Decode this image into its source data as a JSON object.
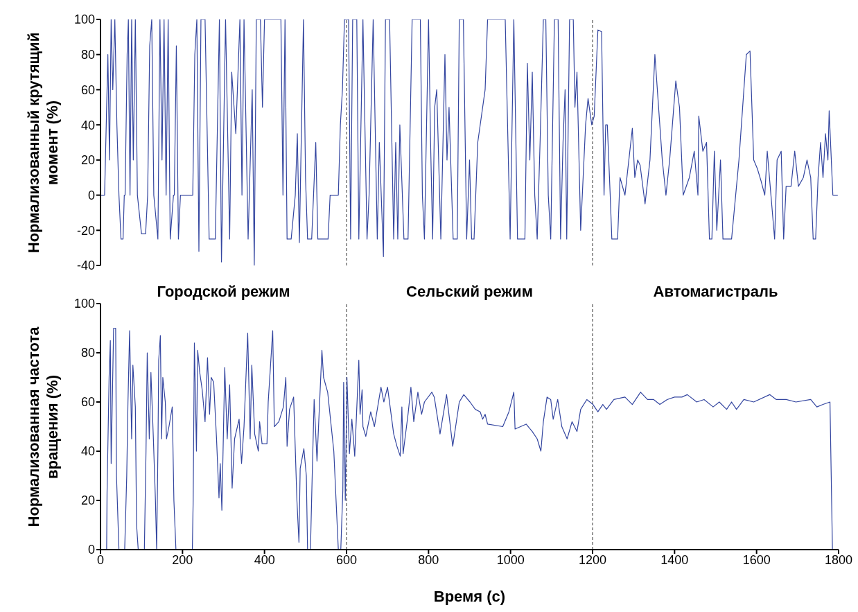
{
  "chart_data": [
    {
      "type": "line",
      "ylabel": "Нормализованный крутящий момент (%)",
      "color": "#3446a0",
      "xlim": [
        0,
        1800
      ],
      "ylim": [
        -40,
        100
      ],
      "yticks": [
        -40,
        -20,
        0,
        20,
        40,
        60,
        80,
        100
      ],
      "tick_labels": "y",
      "grid": false,
      "legend": false,
      "ref_lines": [
        {
          "axis": "x",
          "value": 600,
          "color": "#555555",
          "line_style": "dashed"
        },
        {
          "axis": "x",
          "value": 1200,
          "color": "#555555",
          "line_style": "dashed"
        }
      ],
      "x": [
        0,
        10,
        14,
        18,
        22,
        26,
        30,
        35,
        40,
        45,
        50,
        55,
        58,
        60,
        65,
        68,
        72,
        76,
        80,
        85,
        90,
        100,
        110,
        115,
        120,
        125,
        130,
        140,
        145,
        150,
        155,
        160,
        165,
        170,
        178,
        180,
        185,
        190,
        195,
        225,
        230,
        235,
        240,
        245,
        255,
        265,
        280,
        290,
        295,
        300,
        305,
        315,
        320,
        330,
        340,
        345,
        350,
        360,
        370,
        375,
        380,
        390,
        395,
        400,
        440,
        445,
        450,
        455,
        465,
        475,
        480,
        485,
        495,
        500,
        505,
        515,
        525,
        530,
        545,
        555,
        560,
        580,
        585,
        590,
        595,
        605,
        610,
        615,
        625,
        630,
        640,
        650,
        655,
        665,
        675,
        680,
        690,
        695,
        705,
        715,
        720,
        725,
        730,
        740,
        750,
        760,
        780,
        785,
        790,
        800,
        805,
        810,
        815,
        820,
        830,
        840,
        845,
        850,
        860,
        870,
        875,
        885,
        893,
        900,
        905,
        911,
        920,
        938,
        944,
        987,
        999,
        1008,
        1017,
        1035,
        1041,
        1047,
        1053,
        1059,
        1065,
        1072,
        1080,
        1086,
        1092,
        1098,
        1107,
        1116,
        1122,
        1128,
        1133,
        1137,
        1144,
        1153,
        1157,
        1162,
        1171,
        1183,
        1189,
        1198,
        1204,
        1213,
        1222,
        1228,
        1232,
        1236,
        1243,
        1247,
        1255,
        1261,
        1267,
        1279,
        1297,
        1303,
        1310,
        1316,
        1328,
        1340,
        1352,
        1358,
        1370,
        1379,
        1388,
        1403,
        1412,
        1421,
        1436,
        1448,
        1457,
        1459,
        1469,
        1478,
        1485,
        1491,
        1497,
        1503,
        1512,
        1518,
        1527,
        1539,
        1551,
        1557,
        1569,
        1575,
        1584,
        1593,
        1602,
        1611,
        1620,
        1626,
        1635,
        1644,
        1650,
        1660,
        1666,
        1672,
        1684,
        1693,
        1702,
        1714,
        1723,
        1732,
        1738,
        1744,
        1750,
        1756,
        1762,
        1768,
        1774,
        1777,
        1786,
        1798
      ],
      "values": [
        0,
        0,
        40,
        80,
        20,
        100,
        60,
        100,
        40,
        0,
        -25,
        -25,
        0,
        0,
        80,
        100,
        0,
        100,
        20,
        100,
        0,
        -22,
        -22,
        0,
        85,
        100,
        0,
        -25,
        100,
        20,
        100,
        0,
        100,
        -25,
        0,
        0,
        85,
        -25,
        0,
        0,
        80,
        100,
        -32,
        100,
        100,
        -25,
        -25,
        100,
        -38,
        30,
        100,
        -25,
        70,
        35,
        100,
        0,
        100,
        -25,
        60,
        -40,
        100,
        100,
        50,
        100,
        100,
        0,
        100,
        -25,
        -25,
        0,
        35,
        -27,
        100,
        10,
        -25,
        -25,
        30,
        -25,
        -25,
        -25,
        0,
        0,
        40,
        60,
        100,
        100,
        -25,
        100,
        100,
        -25,
        100,
        -25,
        0,
        100,
        -25,
        30,
        -35,
        100,
        100,
        -25,
        30,
        -25,
        40,
        -25,
        -25,
        100,
        100,
        0,
        -25,
        100,
        30,
        -25,
        50,
        60,
        -25,
        80,
        20,
        50,
        -25,
        -25,
        100,
        100,
        -25,
        20,
        -25,
        -25,
        30,
        60,
        100,
        100,
        -25,
        100,
        -25,
        -25,
        75,
        20,
        70,
        0,
        -25,
        30,
        100,
        100,
        0,
        -25,
        100,
        100,
        -25,
        30,
        60,
        -25,
        100,
        100,
        50,
        70,
        -20,
        40,
        55,
        40,
        45,
        94,
        93,
        0,
        40,
        40,
        0,
        -25,
        -25,
        -25,
        10,
        0,
        38,
        10,
        20,
        17,
        -5,
        20,
        80,
        60,
        20,
        0,
        20,
        65,
        50,
        0,
        10,
        25,
        0,
        45,
        25,
        30,
        -25,
        -25,
        25,
        -20,
        20,
        -25,
        -25,
        -25,
        5,
        20,
        60,
        80,
        82,
        20,
        15,
        8,
        0,
        25,
        0,
        -25,
        20,
        25,
        -25,
        5,
        5,
        25,
        5,
        10,
        20,
        10,
        -25,
        -25,
        10,
        30,
        10,
        35,
        20,
        48,
        0,
        0
      ]
    },
    {
      "type": "line",
      "ylabel": "Нормализованная частота вращения (%)",
      "xlabel": "Время (с)",
      "color": "#3446a0",
      "xlim": [
        0,
        1800
      ],
      "xticks": [
        0,
        200,
        400,
        600,
        800,
        1000,
        1200,
        1400,
        1600,
        1800
      ],
      "ylim": [
        0,
        100
      ],
      "yticks": [
        0,
        20,
        40,
        60,
        80,
        100
      ],
      "grid": false,
      "legend": false,
      "annotations": [
        "Городской режим",
        "Сельский режим",
        "Автомагистраль"
      ],
      "ref_lines": [
        {
          "axis": "x",
          "value": 600,
          "color": "#555555",
          "line_style": "dashed"
        },
        {
          "axis": "x",
          "value": 1200,
          "color": "#555555",
          "line_style": "dashed"
        }
      ],
      "x": [
        0,
        15,
        16,
        21,
        24,
        26,
        32,
        37,
        39,
        45,
        59,
        64,
        67,
        71,
        76,
        79,
        85,
        88,
        92,
        107,
        111,
        114,
        119,
        123,
        129,
        134,
        137,
        140,
        142,
        146,
        149,
        152,
        158,
        161,
        167,
        175,
        179,
        184,
        224,
        226,
        229,
        234,
        237,
        242,
        248,
        255,
        261,
        266,
        270,
        276,
        283,
        289,
        292,
        296,
        303,
        309,
        315,
        321,
        327,
        338,
        344,
        350,
        359,
        365,
        369,
        376,
        385,
        388,
        394,
        406,
        409,
        420,
        424,
        435,
        446,
        452,
        455,
        461,
        471,
        479,
        484,
        487,
        496,
        502,
        505,
        512,
        516,
        521,
        528,
        540,
        544,
        554,
        569,
        580,
        586,
        591,
        593,
        597,
        601,
        607,
        613,
        620,
        630,
        633,
        638,
        640,
        647,
        659,
        668,
        684,
        691,
        700,
        715,
        723,
        731,
        735,
        738,
        750,
        757,
        764,
        774,
        783,
        790,
        808,
        814,
        828,
        844,
        859,
        875,
        886,
        901,
        914,
        926,
        932,
        938,
        944,
        981,
        996,
        1008,
        1011,
        1038,
        1053,
        1065,
        1074,
        1080,
        1089,
        1098,
        1104,
        1115,
        1125,
        1138,
        1150,
        1162,
        1171,
        1186,
        1201,
        1213,
        1225,
        1234,
        1252,
        1279,
        1297,
        1317,
        1334,
        1349,
        1364,
        1382,
        1400,
        1418,
        1431,
        1454,
        1472,
        1494,
        1509,
        1527,
        1539,
        1551,
        1569,
        1593,
        1632,
        1648,
        1672,
        1696,
        1732,
        1747,
        1762,
        1779,
        1785,
        1798
      ],
      "values": [
        0,
        0,
        23,
        70,
        85,
        35,
        90,
        90,
        30,
        0,
        0,
        30,
        60,
        89,
        45,
        75,
        58,
        10,
        0,
        0,
        40,
        80,
        45,
        72,
        45,
        20,
        0,
        40,
        77,
        87,
        45,
        70,
        60,
        45,
        50,
        58,
        20,
        0,
        0,
        20,
        84,
        40,
        81,
        72,
        65,
        52,
        78,
        55,
        70,
        68,
        45,
        21,
        35,
        16,
        74,
        45,
        67,
        25,
        45,
        53,
        35,
        50,
        88,
        45,
        75,
        47,
        40,
        52,
        43,
        43,
        60,
        89,
        50,
        52,
        58,
        70,
        42,
        57,
        62,
        20,
        3,
        33,
        41,
        30,
        0,
        0,
        28,
        61,
        36,
        81,
        70,
        64,
        40,
        0,
        0,
        24,
        68,
        20,
        70,
        39,
        53,
        38,
        77,
        55,
        65,
        50,
        46,
        56,
        50,
        66,
        60,
        66,
        47,
        42,
        38,
        58,
        39,
        55,
        66,
        52,
        64,
        55,
        60,
        64,
        62,
        47,
        63,
        42,
        60,
        63,
        60,
        57,
        56,
        53,
        55,
        51,
        50,
        56,
        64,
        49,
        51,
        48,
        45,
        40,
        52,
        62,
        61,
        53,
        61,
        50,
        45,
        52,
        48,
        57,
        61,
        59,
        56,
        59,
        57,
        61,
        62,
        59,
        64,
        61,
        61,
        59,
        61,
        62,
        62,
        63,
        60,
        61,
        58,
        60,
        57,
        60,
        57,
        61,
        60,
        63,
        61,
        61,
        60,
        61,
        58,
        59,
        60,
        0,
        0
      ]
    }
  ]
}
